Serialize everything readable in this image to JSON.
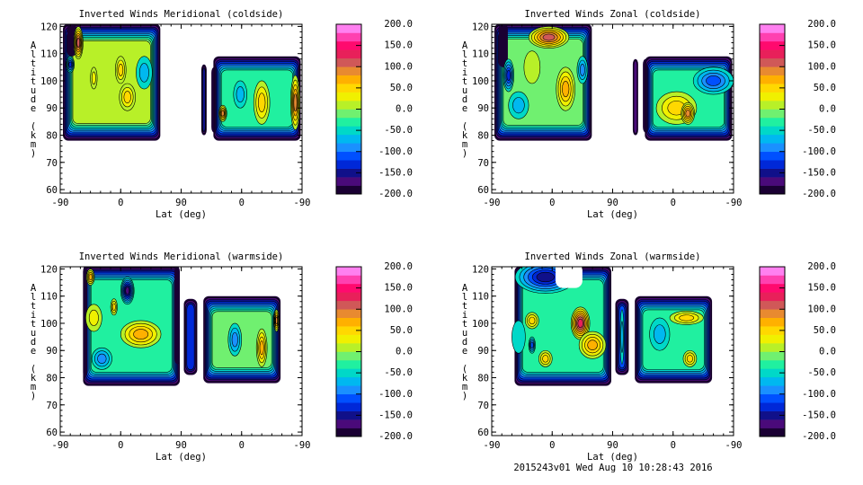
{
  "footer": "2015243v01 Wed Aug 10 10:28:43 2016",
  "colorbar": {
    "levels_min": -200,
    "levels_max": 200,
    "step": 20,
    "labels": [
      "200.0",
      "150.0",
      "100.0",
      "50.0",
      "0.0",
      "-50.0",
      "-100.0",
      "-150.0",
      "-200.0"
    ],
    "label_values": [
      200,
      150,
      100,
      50,
      0,
      -50,
      -100,
      -150,
      -200
    ],
    "colors": [
      "#1a0033",
      "#4a0a7a",
      "#10108a",
      "#0028d8",
      "#0050ff",
      "#1a90ff",
      "#00b8f0",
      "#00d8c8",
      "#20f0a0",
      "#70f070",
      "#b8f028",
      "#f0f000",
      "#ffd800",
      "#ffb000",
      "#e88a30",
      "#d05858",
      "#e8205a",
      "#ff0a6e",
      "#ff40b0",
      "#ff80f0"
    ]
  },
  "chart_data": [
    {
      "type": "contour",
      "title": "Inverted Winds Meridional (coldside)",
      "xlabel": "Lat (deg)",
      "ylabel": "Altitude (km)",
      "xticks": [
        "-90",
        "0",
        "90",
        "0",
        "-90"
      ],
      "xtick_positions": [
        0,
        90,
        180,
        270,
        360
      ],
      "yticks": [
        "60",
        "70",
        "80",
        "90",
        "100",
        "110",
        "120"
      ],
      "ytick_values": [
        60,
        70,
        80,
        90,
        100,
        110,
        120
      ],
      "xlim": [
        0,
        360
      ],
      "ylim": [
        58.7,
        120.8
      ],
      "blocks": [
        {
          "u": [
            4,
            149
          ],
          "alt": [
            78,
            121
          ],
          "base": -10
        },
        {
          "u": [
            10,
            24
          ],
          "alt": [
            109,
            121
          ],
          "base": -200
        },
        {
          "u": [
            210,
            218
          ],
          "alt": [
            80,
            106
          ],
          "base": -160
        },
        {
          "u": [
            225,
            233
          ],
          "alt": [
            81,
            105
          ],
          "base": -200
        },
        {
          "u": [
            228,
            358
          ],
          "alt": [
            78,
            109
          ],
          "base": -40
        }
      ],
      "blobs": [
        {
          "u": 100,
          "alt": 94,
          "ru": 12,
          "ra": 5,
          "v": 40
        },
        {
          "u": 90,
          "alt": 104,
          "ru": 8,
          "ra": 5,
          "v": 30
        },
        {
          "u": 125,
          "alt": 103,
          "ru": 12,
          "ra": 6,
          "v": -60
        },
        {
          "u": 27,
          "alt": 114,
          "ru": 7,
          "ra": 6,
          "v": 90
        },
        {
          "u": 50,
          "alt": 101,
          "ru": 5,
          "ra": 4,
          "v": 20
        },
        {
          "u": 15,
          "alt": 106,
          "ru": 6,
          "ra": 3,
          "v": -120
        },
        {
          "u": 300,
          "alt": 92,
          "ru": 12,
          "ra": 8,
          "v": 30
        },
        {
          "u": 350,
          "alt": 92,
          "ru": 7,
          "ra": 10,
          "v": 70
        },
        {
          "u": 242,
          "alt": 88,
          "ru": 6,
          "ra": 3,
          "v": 80
        },
        {
          "u": 268,
          "alt": 95,
          "ru": 10,
          "ra": 5,
          "v": -60
        }
      ]
    },
    {
      "type": "contour",
      "title": "Inverted Winds Zonal (coldside)",
      "xlabel": "Lat (deg)",
      "ylabel": "Altitude (km)",
      "xticks": [
        "-90",
        "0",
        "90",
        "0",
        "-90"
      ],
      "xtick_positions": [
        0,
        90,
        180,
        270,
        360
      ],
      "yticks": [
        "60",
        "70",
        "80",
        "90",
        "100",
        "110",
        "120"
      ],
      "ytick_values": [
        60,
        70,
        80,
        90,
        100,
        110,
        120
      ],
      "xlim": [
        0,
        360
      ],
      "ylim": [
        58.7,
        120.8
      ],
      "blocks": [
        {
          "u": [
            4,
            149
          ],
          "alt": [
            78,
            121
          ],
          "base": -30
        },
        {
          "u": [
            10,
            24
          ],
          "alt": [
            105,
            121
          ],
          "base": -200
        },
        {
          "u": [
            210,
            218
          ],
          "alt": [
            80,
            108
          ],
          "base": -180
        },
        {
          "u": [
            225,
            233
          ],
          "alt": [
            81,
            108
          ],
          "base": -200
        },
        {
          "u": [
            228,
            358
          ],
          "alt": [
            78,
            109
          ],
          "base": -50
        }
      ],
      "blobs": [
        {
          "u": 25,
          "alt": 102,
          "ru": 8,
          "ra": 6,
          "v": -110
        },
        {
          "u": 110,
          "alt": 97,
          "ru": 14,
          "ra": 8,
          "v": 60
        },
        {
          "u": 85,
          "alt": 116,
          "ru": 30,
          "ra": 4,
          "v": 90
        },
        {
          "u": 135,
          "alt": 104,
          "ru": 8,
          "ra": 5,
          "v": -80
        },
        {
          "u": 60,
          "alt": 105,
          "ru": 12,
          "ra": 6,
          "v": 0
        },
        {
          "u": 40,
          "alt": 91,
          "ru": 15,
          "ra": 5,
          "v": -50
        },
        {
          "u": 275,
          "alt": 90,
          "ru": 30,
          "ra": 6,
          "v": 40
        },
        {
          "u": 292,
          "alt": 88,
          "ru": 10,
          "ra": 4,
          "v": 80
        },
        {
          "u": 330,
          "alt": 100,
          "ru": 30,
          "ra": 5,
          "v": -90
        }
      ]
    },
    {
      "type": "contour",
      "title": "Inverted Winds Meridional (warmside)",
      "xlabel": "Lat (deg)",
      "ylabel": "Altitude (km)",
      "xticks": [
        "-90",
        "0",
        "90",
        "0",
        "-90"
      ],
      "xtick_positions": [
        0,
        90,
        180,
        270,
        360
      ],
      "yticks": [
        "60",
        "70",
        "80",
        "90",
        "100",
        "110",
        "120"
      ],
      "ytick_values": [
        60,
        70,
        80,
        90,
        100,
        110,
        120
      ],
      "xlim": [
        0,
        360
      ],
      "ylim": [
        58.7,
        120.8
      ],
      "blocks": [
        {
          "u": [
            34,
            178
          ],
          "alt": [
            77,
            121
          ],
          "base": -40
        },
        {
          "u": [
            34,
            40
          ],
          "alt": [
            80,
            121
          ],
          "base": -200
        },
        {
          "u": [
            170,
            178
          ],
          "alt": [
            85,
            121
          ],
          "base": -200
        },
        {
          "u": [
            184,
            204
          ],
          "alt": [
            81,
            109
          ],
          "base": -140
        },
        {
          "u": [
            213,
            328
          ],
          "alt": [
            78,
            110
          ],
          "base": -20
        }
      ],
      "blobs": [
        {
          "u": 120,
          "alt": 96,
          "ru": 30,
          "ra": 5,
          "v": 60
        },
        {
          "u": 100,
          "alt": 112,
          "ru": 10,
          "ra": 5,
          "v": -150
        },
        {
          "u": 50,
          "alt": 102,
          "ru": 12,
          "ra": 5,
          "v": 20
        },
        {
          "u": 80,
          "alt": 106,
          "ru": 5,
          "ra": 3,
          "v": 40
        },
        {
          "u": 62,
          "alt": 87,
          "ru": 15,
          "ra": 4,
          "v": -80
        },
        {
          "u": 45,
          "alt": 117,
          "ru": 6,
          "ra": 3,
          "v": 50
        },
        {
          "u": 260,
          "alt": 94,
          "ru": 10,
          "ra": 6,
          "v": -70
        },
        {
          "u": 300,
          "alt": 91,
          "ru": 8,
          "ra": 7,
          "v": 50
        },
        {
          "u": 322,
          "alt": 101,
          "ru": 4,
          "ra": 4,
          "v": 80
        }
      ]
    },
    {
      "type": "contour",
      "title": "Inverted Winds Zonal (warmside)",
      "xlabel": "Lat (deg)",
      "ylabel": "Altitude (km)",
      "xticks": [
        "-90",
        "0",
        "90",
        "0",
        "-90"
      ],
      "xtick_positions": [
        0,
        90,
        180,
        270,
        360
      ],
      "yticks": [
        "60",
        "70",
        "80",
        "90",
        "100",
        "110",
        "120"
      ],
      "ytick_values": [
        60,
        70,
        80,
        90,
        100,
        110,
        120
      ],
      "xlim": [
        0,
        360
      ],
      "ylim": [
        58.7,
        120.8
      ],
      "blocks": [
        {
          "u": [
            34,
            178
          ],
          "alt": [
            77,
            121
          ],
          "base": -50
        },
        {
          "u": [
            184,
            204
          ],
          "alt": [
            81,
            109
          ],
          "base": -120
        },
        {
          "u": [
            213,
            328
          ],
          "alt": [
            78,
            110
          ],
          "base": -40
        }
      ],
      "blobs": [
        {
          "u": 80,
          "alt": 117,
          "ru": 45,
          "ra": 6,
          "v": -140
        },
        {
          "u": 132,
          "alt": 100,
          "ru": 14,
          "ra": 6,
          "v": 110
        },
        {
          "u": 60,
          "alt": 101,
          "ru": 10,
          "ra": 3,
          "v": 30
        },
        {
          "u": 40,
          "alt": 95,
          "ru": 10,
          "ra": 6,
          "v": -30
        },
        {
          "u": 60,
          "alt": 92,
          "ru": 5,
          "ra": 3,
          "v": -100
        },
        {
          "u": 80,
          "alt": 87,
          "ru": 10,
          "ra": 3,
          "v": 30
        },
        {
          "u": 150,
          "alt": 92,
          "ru": 20,
          "ra": 5,
          "v": 60
        },
        {
          "u": 194,
          "alt": 95,
          "ru": 3,
          "ra": 10,
          "v": -50
        },
        {
          "u": 290,
          "alt": 102,
          "ru": 25,
          "ra": 2.5,
          "v": 40
        },
        {
          "u": 295,
          "alt": 87,
          "ru": 10,
          "ra": 3,
          "v": 30
        },
        {
          "u": 250,
          "alt": 96,
          "ru": 15,
          "ra": 6,
          "v": -60
        }
      ],
      "gaps": [
        {
          "u": [
            95,
            135
          ],
          "alt": [
            113,
            121
          ]
        }
      ]
    }
  ]
}
